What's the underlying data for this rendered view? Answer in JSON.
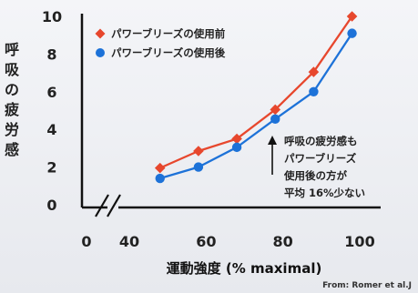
{
  "chart_data": {
    "type": "line",
    "xlabel": "運動強度 (% maximal)",
    "ylabel": "呼吸の疲労感",
    "xlim": [
      0,
      100
    ],
    "ylim": [
      0,
      10
    ],
    "xticks": [
      0,
      40,
      60,
      80,
      100
    ],
    "yticks": [
      0,
      2,
      4,
      6,
      8,
      10
    ],
    "axis_break": "x between 0 and 40",
    "grid": false,
    "legend_position": "top-left",
    "series": [
      {
        "name": "パワーブリーズの使用前",
        "color": "#e7472d",
        "marker": "diamond",
        "x": [
          48,
          58,
          68,
          78,
          88,
          98
        ],
        "y": [
          1.95,
          2.85,
          3.5,
          5.05,
          7.05,
          10.0
        ]
      },
      {
        "name": "パワーブリーズの使用後",
        "color": "#1d72d8",
        "marker": "circle",
        "x": [
          48,
          58,
          68,
          78,
          88,
          98
        ],
        "y": [
          1.4,
          2.0,
          3.05,
          4.55,
          6.0,
          9.1
        ]
      }
    ],
    "annotation": {
      "lines": [
        "呼吸の疲労感も",
        "パワーブリーズ",
        "使用後の方が",
        "平均 16%少ない"
      ]
    },
    "source": "From: Romer et al.J"
  }
}
